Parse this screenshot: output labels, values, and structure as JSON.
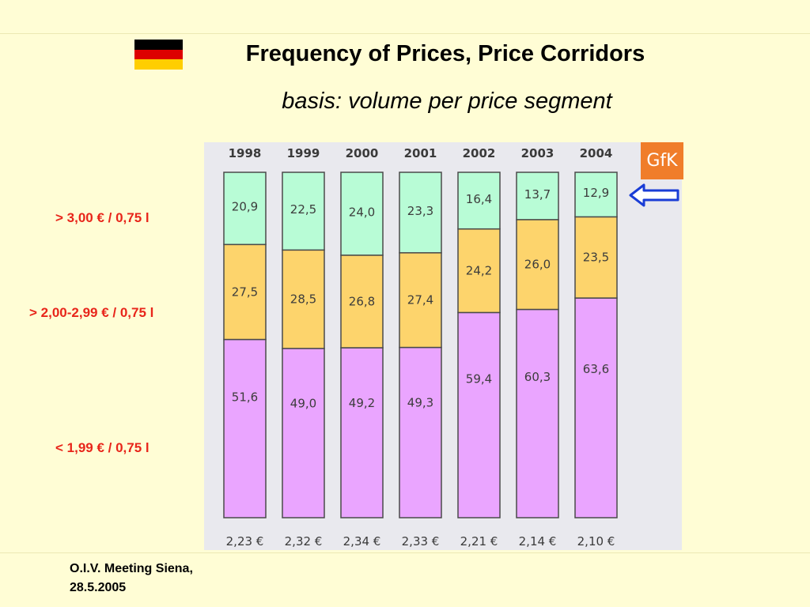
{
  "slide": {
    "title": "Frequency of Prices, Price Corridors",
    "subtitle": "basis:  volume per price segment",
    "footer_line1": "O.I.V. Meeting Siena,",
    "footer_line2": "28.5.2005",
    "source_logo": "GfK",
    "flag_colors": [
      "#000000",
      "#dd0000",
      "#ffce00"
    ]
  },
  "segment_labels": {
    "high": "> 3,00 € / 0,75 l",
    "mid": "> 2,00-2,99 € / 0,75 l",
    "low": "< 1,99 € / 0,75 l"
  },
  "chart_data": {
    "type": "bar",
    "stacked": true,
    "categories": [
      "1998",
      "1999",
      "2000",
      "2001",
      "2002",
      "2003",
      "2004"
    ],
    "series": [
      {
        "color": "#eaa5ff",
        "values": [
          51.6,
          49.0,
          49.2,
          49.3,
          59.4,
          60.3,
          63.6
        ],
        "labels": [
          "51,6",
          "49,0",
          "49,2",
          "49,3",
          "59,4",
          "60,3",
          "63,6"
        ]
      },
      {
        "color": "#fdd46c",
        "values": [
          27.5,
          28.5,
          26.8,
          27.4,
          24.2,
          26.0,
          23.5
        ],
        "labels": [
          "27,5",
          "28,5",
          "26,8",
          "27,4",
          "24,2",
          "26,0",
          "23,5"
        ]
      },
      {
        "color": "#b8fcd6",
        "values": [
          20.9,
          22.5,
          24.0,
          23.3,
          16.4,
          13.7,
          12.9
        ],
        "labels": [
          "20,9",
          "22,5",
          "24,0",
          "23,3",
          "16,4",
          "13,7",
          "12,9"
        ]
      }
    ],
    "bottom_labels": [
      "2,23 €",
      "2,32 €",
      "2,34 €",
      "2,33 €",
      "2,21 €",
      "2,14 €",
      "2,10 €"
    ],
    "ylim": [
      0,
      100
    ],
    "grid": false,
    "legend": "left"
  }
}
